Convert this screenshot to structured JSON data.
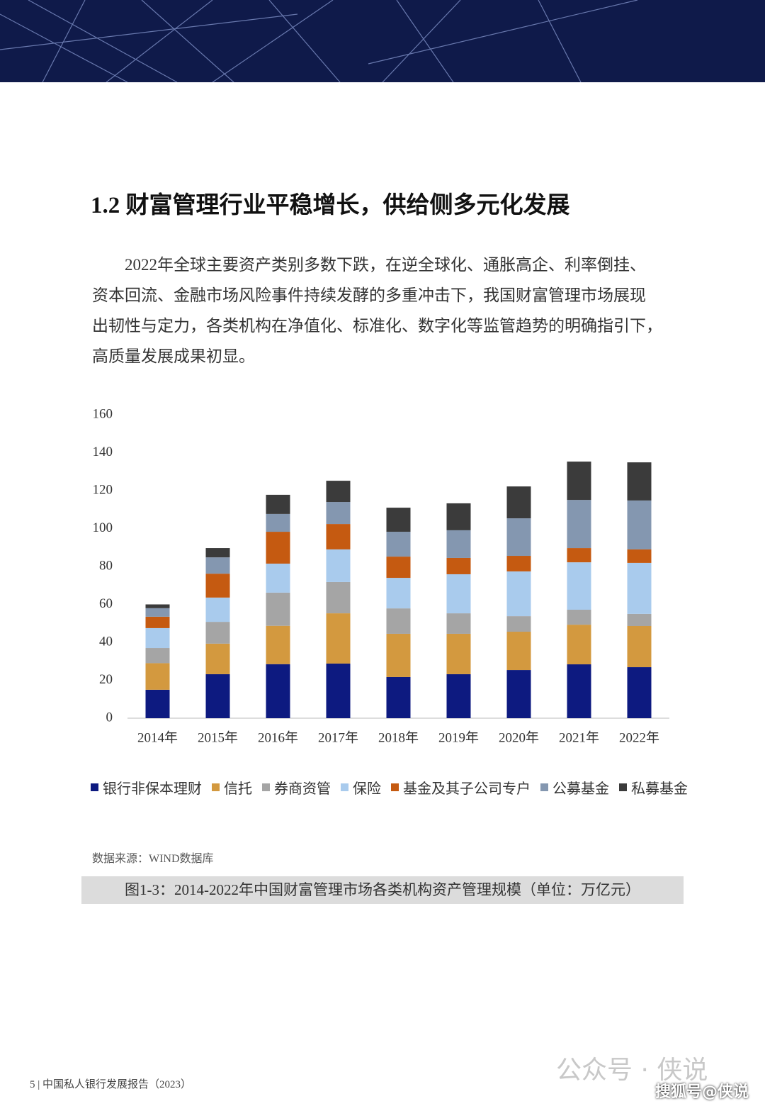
{
  "section_title": "1.2 财富管理行业平稳增长，供给侧多元化发展",
  "paragraph": [
    "2022年全球主要资产类别多数下跌，在逆全球化、通胀高企、利率倒挂、",
    "资本回流、金融市场风险事件持续发酵的多重冲击下，我国财富管理市场展现",
    "出韧性与定力，各类机构在净值化、标准化、数字化等监管趋势的明确指引下，",
    "高质量发展成果初显。"
  ],
  "chart_data": {
    "type": "bar",
    "stacked": true,
    "categories": [
      "2014年",
      "2015年",
      "2016年",
      "2017年",
      "2018年",
      "2019年",
      "2020年",
      "2021年",
      "2022年"
    ],
    "series": [
      {
        "name": "银行非保本理财",
        "color": "#0d1a80",
        "values": [
          15,
          23.2,
          28.5,
          28.8,
          21.7,
          23.2,
          25.4,
          28.4,
          26.9
        ]
      },
      {
        "name": "信托",
        "color": "#d3993f",
        "values": [
          14,
          16.1,
          20.2,
          26.5,
          22.8,
          21.3,
          20.2,
          20.9,
          21.7
        ]
      },
      {
        "name": "券商资管",
        "color": "#a5a5a5",
        "values": [
          8,
          11.5,
          17.5,
          16.5,
          13.4,
          10.8,
          8.2,
          7.9,
          6.4
        ]
      },
      {
        "name": "保险",
        "color": "#a9cbed",
        "values": [
          10.5,
          12.8,
          15.3,
          17.2,
          16.1,
          20.6,
          23.6,
          25,
          26.9
        ]
      },
      {
        "name": "基金及其子公司专户",
        "color": "#c55a11",
        "values": [
          6,
          12.6,
          16.8,
          13.4,
          11.2,
          8.6,
          8.2,
          7.5,
          7.1
        ]
      },
      {
        "name": "公募基金",
        "color": "#8497b0",
        "values": [
          4.5,
          8.6,
          9.4,
          11.6,
          13.1,
          14.6,
          19.8,
          25.4,
          25.8
        ]
      },
      {
        "name": "私募基金",
        "color": "#3b3b3b",
        "values": [
          2,
          4.9,
          10.1,
          11.2,
          12.7,
          14.2,
          16.8,
          20.2,
          20.1
        ]
      }
    ],
    "ylim": [
      0,
      160
    ],
    "yticks": [
      0,
      20,
      40,
      60,
      80,
      100,
      120,
      140,
      160
    ],
    "grid": false
  },
  "source": "数据来源：WIND数据库",
  "caption": "图1-3：2014-2022年中国财富管理市场各类机构资产管理规模（单位：万亿元）",
  "footer": "5 | 中国私人银行发展报告（2023）",
  "watermark": "公众号 · 侠说",
  "watermark2": "搜狐号@侠说"
}
